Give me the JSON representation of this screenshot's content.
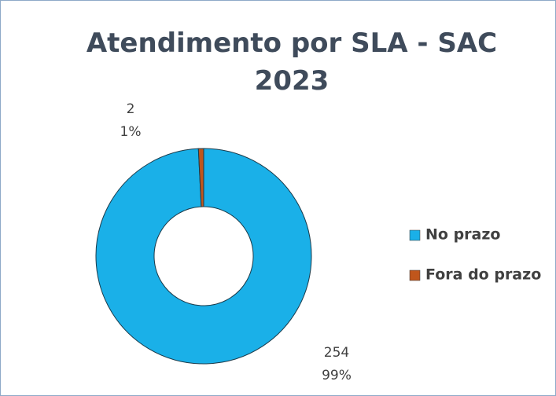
{
  "chart_data": {
    "type": "donut",
    "title": "Atendimento por SLA - SAC 2023",
    "categories": [
      "No prazo",
      "Fora do prazo"
    ],
    "values": [
      254,
      2
    ],
    "percent_labels": [
      "99%",
      "1%"
    ],
    "colors": [
      "#1ab0e8",
      "#c0561c"
    ],
    "legend": "right"
  }
}
